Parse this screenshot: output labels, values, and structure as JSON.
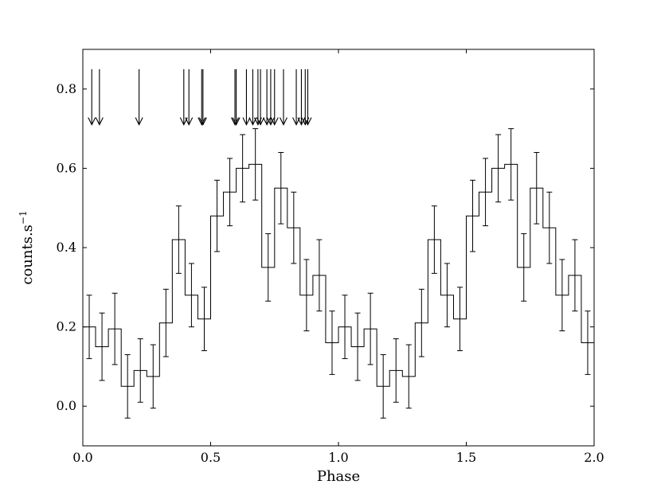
{
  "chart_data": {
    "type": "line",
    "style": "step-histogram-with-error-bars",
    "xlabel": "Phase",
    "ylabel_main": "counts.s",
    "ylabel_sup": "−1",
    "xlim": [
      0.0,
      2.0
    ],
    "ylim": [
      -0.1,
      0.9
    ],
    "xticks": [
      0.0,
      0.5,
      1.0,
      1.5,
      2.0
    ],
    "xtick_labels": [
      "0.0",
      "0.5",
      "1.0",
      "1.5",
      "2.0"
    ],
    "yticks": [
      0.0,
      0.2,
      0.4,
      0.6,
      0.8
    ],
    "ytick_labels": [
      "0.0",
      "0.2",
      "0.4",
      "0.6",
      "0.8"
    ],
    "bin_width": 0.05,
    "bin_centers": [
      0.025,
      0.075,
      0.125,
      0.175,
      0.225,
      0.275,
      0.325,
      0.375,
      0.425,
      0.475,
      0.525,
      0.575,
      0.625,
      0.675,
      0.725,
      0.775,
      0.825,
      0.875,
      0.925,
      0.975,
      1.025,
      1.075,
      1.125,
      1.175,
      1.225,
      1.275,
      1.325,
      1.375,
      1.425,
      1.475,
      1.525,
      1.575,
      1.625,
      1.675,
      1.725,
      1.775,
      1.825,
      1.875,
      1.925,
      1.975
    ],
    "values": [
      0.2,
      0.15,
      0.195,
      0.05,
      0.09,
      0.075,
      0.21,
      0.42,
      0.28,
      0.22,
      0.48,
      0.54,
      0.6,
      0.61,
      0.35,
      0.55,
      0.45,
      0.28,
      0.33,
      0.16,
      0.2,
      0.15,
      0.195,
      0.05,
      0.09,
      0.075,
      0.21,
      0.42,
      0.28,
      0.22,
      0.48,
      0.54,
      0.6,
      0.61,
      0.35,
      0.55,
      0.45,
      0.28,
      0.33,
      0.16
    ],
    "errors": [
      0.08,
      0.085,
      0.09,
      0.08,
      0.08,
      0.08,
      0.085,
      0.085,
      0.08,
      0.08,
      0.09,
      0.085,
      0.085,
      0.09,
      0.085,
      0.09,
      0.09,
      0.09,
      0.09,
      0.08,
      0.08,
      0.085,
      0.09,
      0.08,
      0.08,
      0.08,
      0.085,
      0.085,
      0.08,
      0.08,
      0.09,
      0.085,
      0.085,
      0.09,
      0.085,
      0.09,
      0.09,
      0.09,
      0.09,
      0.08
    ],
    "arrow_phases": [
      0.035,
      0.065,
      0.22,
      0.395,
      0.415,
      0.465,
      0.47,
      0.595,
      0.6,
      0.64,
      0.665,
      0.685,
      0.695,
      0.72,
      0.735,
      0.75,
      0.785,
      0.835,
      0.855,
      0.87,
      0.88
    ],
    "arrow_y_top": 0.85,
    "arrow_y_tip": 0.71
  }
}
